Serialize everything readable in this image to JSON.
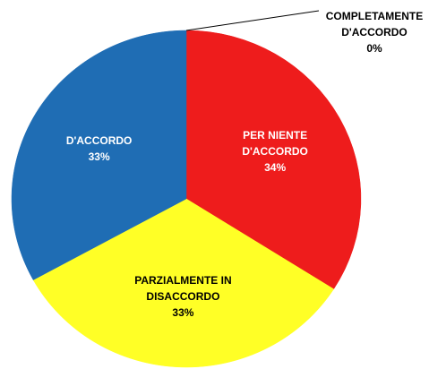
{
  "chart_data": {
    "type": "pie",
    "categories": [
      "PER NIENTE D'ACCORDO",
      "PARZIALMENTE IN DISACCORDO",
      "D'ACCORDO",
      "COMPLETAMENTE D'ACCORDO"
    ],
    "values": [
      34,
      33,
      33,
      0
    ],
    "value_labels": [
      "34%",
      "33%",
      "33%",
      "0%"
    ],
    "colors": [
      "#ee1c1c",
      "#ffff26",
      "#1f6db4",
      "#7fa34a"
    ],
    "label_colors": [
      "#ffffff",
      "#000000",
      "#ffffff",
      "#000000"
    ]
  }
}
